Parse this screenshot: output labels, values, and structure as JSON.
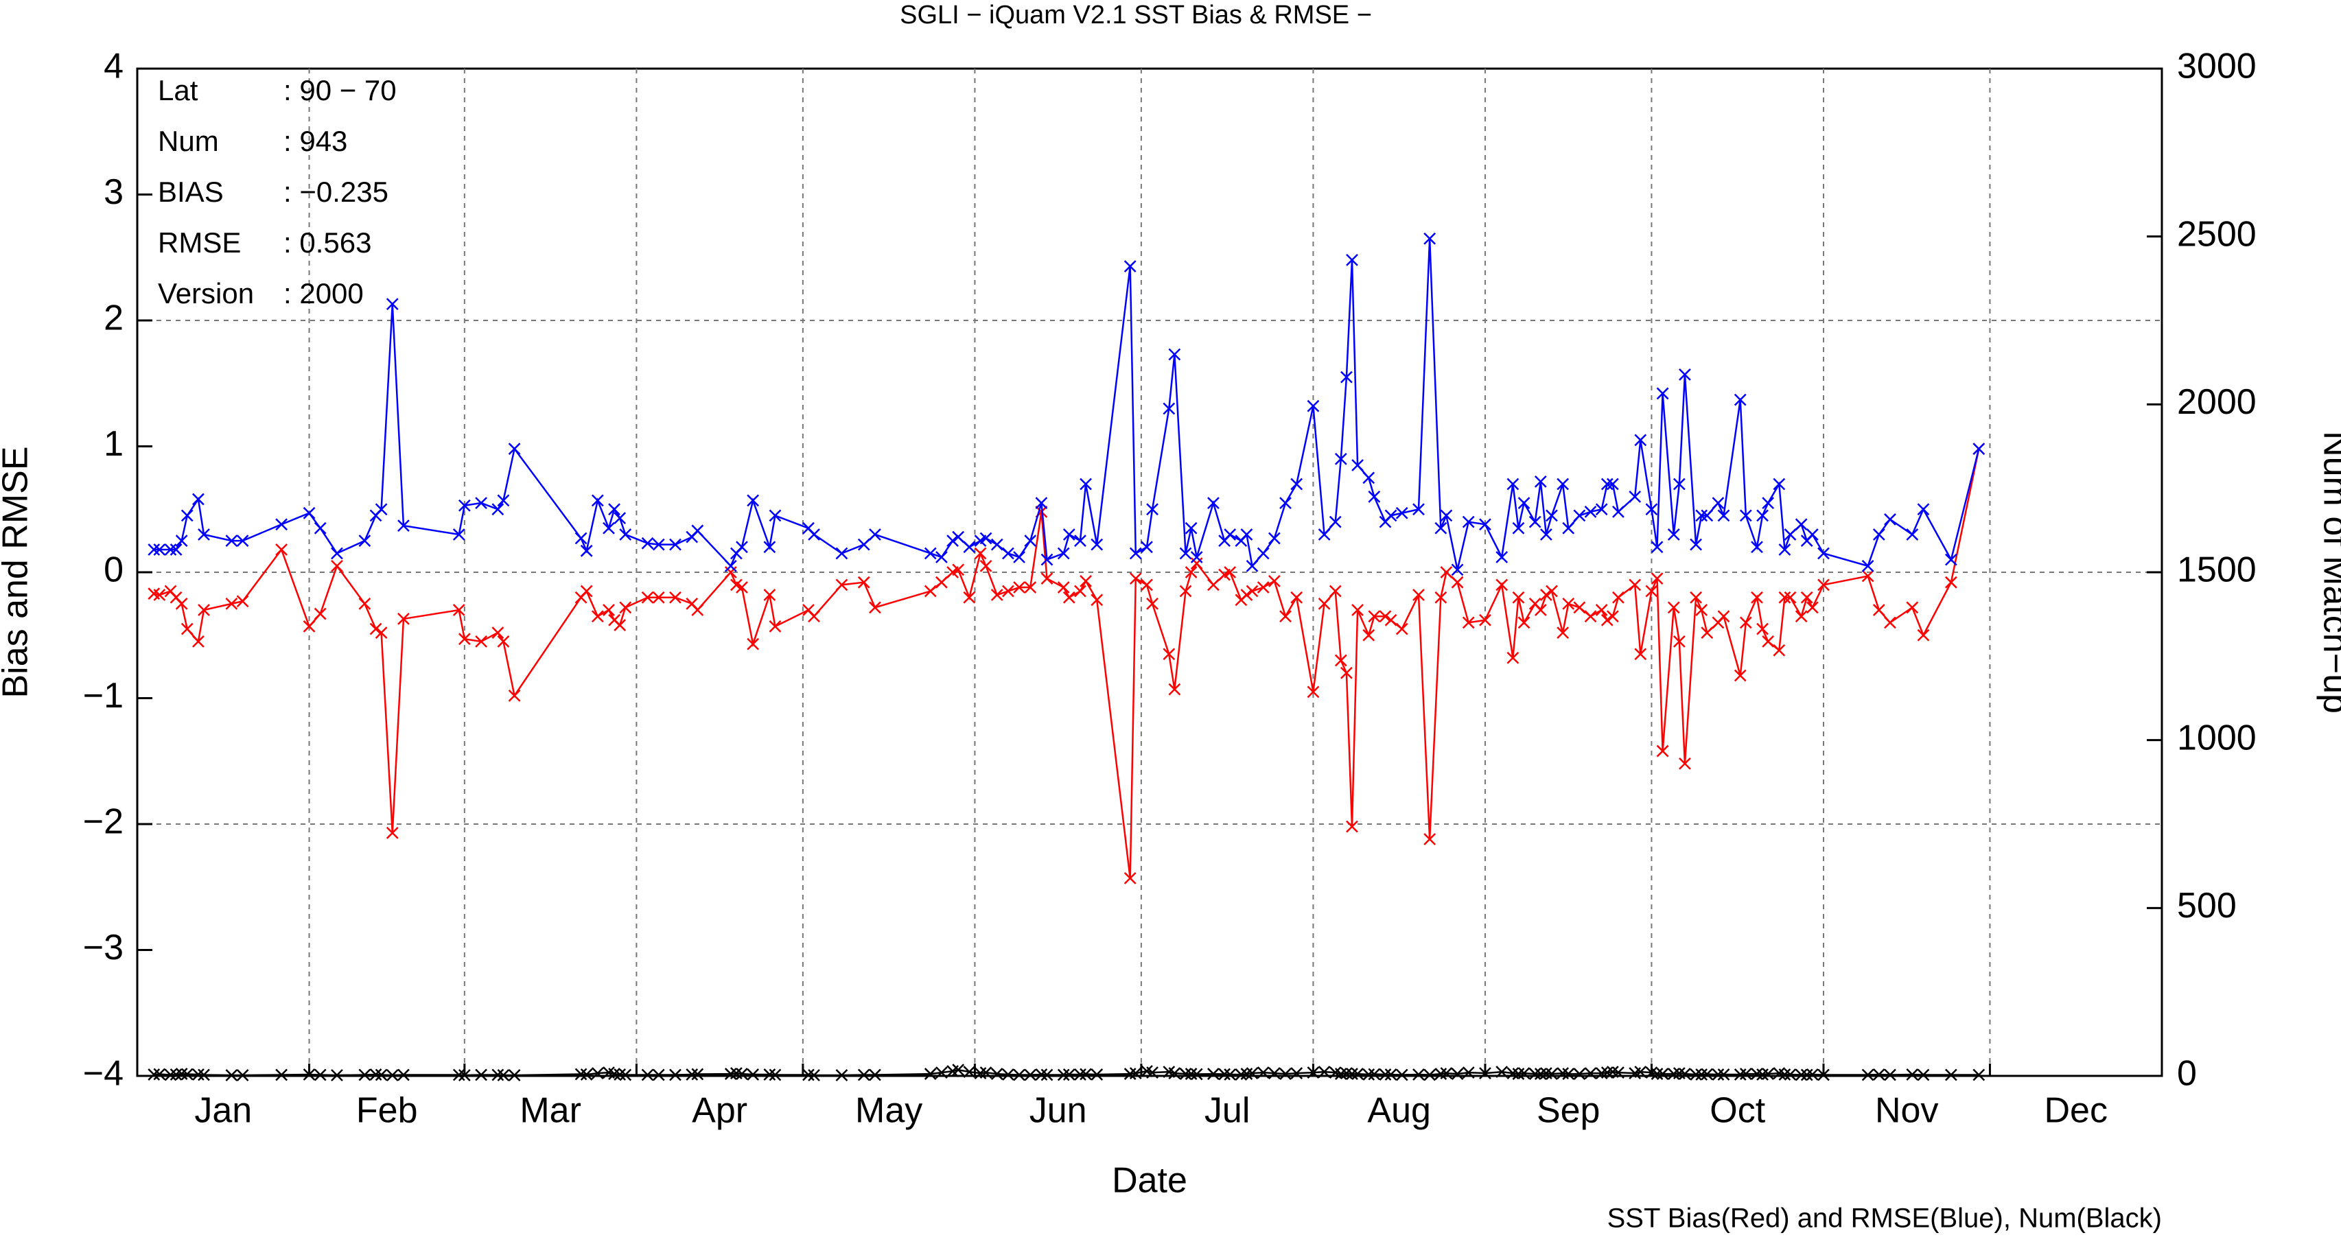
{
  "chart_data": {
    "type": "line",
    "title": "SGLI − iQuam V2.1 SST Bias & RMSE  −",
    "xlabel": "Date",
    "ylabel": "Bias and RMSE",
    "y2label": "Num of Match−up",
    "footer": "SST Bias(Red) and RMSE(Blue), Num(Black)",
    "stats": [
      [
        "Lat",
        ": 90 − 70"
      ],
      [
        "Num",
        ": 943"
      ],
      [
        "BIAS",
        ": −0.235"
      ],
      [
        "RMSE",
        ": 0.563"
      ],
      [
        "Version",
        ": 2000"
      ]
    ],
    "xlim": [
      0,
      365
    ],
    "xticks": [
      {
        "value": 15.5,
        "label": "Jan"
      },
      {
        "value": 45,
        "label": "Feb"
      },
      {
        "value": 74.5,
        "label": "Mar"
      },
      {
        "value": 105,
        "label": "Apr"
      },
      {
        "value": 135.5,
        "label": "May"
      },
      {
        "value": 166,
        "label": "Jun"
      },
      {
        "value": 196.5,
        "label": "Jul"
      },
      {
        "value": 227.5,
        "label": "Aug"
      },
      {
        "value": 258,
        "label": "Sep"
      },
      {
        "value": 288.5,
        "label": "Oct"
      },
      {
        "value": 319,
        "label": "Nov"
      },
      {
        "value": 349.5,
        "label": "Dec"
      }
    ],
    "xgrid": [
      31,
      59,
      90,
      120,
      151,
      181,
      212,
      243,
      273,
      304,
      334
    ],
    "ylim": [
      -4,
      4
    ],
    "yticks": [
      {
        "value": -4,
        "label": "−4"
      },
      {
        "value": -3,
        "label": "−3"
      },
      {
        "value": -2,
        "label": "−2"
      },
      {
        "value": -1,
        "label": "−1"
      },
      0,
      1,
      2,
      3,
      4
    ],
    "ygrid": [
      -2,
      0,
      2
    ],
    "y2lim": [
      0,
      3000
    ],
    "y2ticks": [
      0,
      500,
      1000,
      1500,
      2000,
      2500,
      3000
    ],
    "grid": true,
    "x": [
      3,
      4,
      6,
      7,
      8,
      9,
      11,
      12,
      17,
      19,
      26,
      31,
      33,
      36,
      41,
      43,
      44,
      46,
      48,
      58,
      59,
      62,
      65,
      66,
      68,
      80,
      81,
      83,
      85,
      86,
      87,
      88,
      92,
      94,
      97,
      100,
      101,
      107,
      108,
      109,
      111,
      114,
      115,
      121,
      122,
      127,
      131,
      133,
      143,
      145,
      147,
      148,
      150,
      152,
      153,
      155,
      157,
      159,
      161,
      163,
      164,
      167,
      168,
      170,
      171,
      173,
      179,
      180,
      182,
      183,
      186,
      187,
      189,
      190,
      191,
      194,
      196,
      197,
      199,
      200,
      201,
      203,
      205,
      207,
      209,
      212,
      214,
      216,
      217,
      218,
      219,
      220,
      222,
      223,
      225,
      226,
      228,
      231,
      233,
      235,
      236,
      238,
      240,
      243,
      246,
      248,
      249,
      250,
      252,
      253,
      254,
      255,
      257,
      258,
      260,
      262,
      264,
      265,
      266,
      267,
      270,
      271,
      273,
      274,
      275,
      277,
      278,
      279,
      281,
      282,
      283,
      285,
      286,
      289,
      290,
      292,
      293,
      294,
      296,
      297,
      298,
      300,
      301,
      302,
      304,
      312,
      314,
      316,
      320,
      322,
      327,
      332
    ],
    "series": [
      {
        "color": "#ff0000",
        "values": [
          -0.17,
          -0.18,
          -0.15,
          -0.2,
          -0.25,
          -0.45,
          -0.55,
          -0.3,
          -0.25,
          -0.23,
          0.18,
          -0.43,
          -0.33,
          0.05,
          -0.25,
          -0.45,
          -0.48,
          -2.07,
          -0.37,
          -0.3,
          -0.53,
          -0.55,
          -0.48,
          -0.55,
          -0.98,
          -0.2,
          -0.15,
          -0.35,
          -0.3,
          -0.38,
          -0.42,
          -0.28,
          -0.2,
          -0.2,
          -0.2,
          -0.25,
          -0.3,
          0,
          -0.1,
          -0.12,
          -0.57,
          -0.18,
          -0.43,
          -0.3,
          -0.35,
          -0.1,
          -0.08,
          -0.28,
          -0.15,
          -0.08,
          0,
          0.02,
          -0.2,
          0.15,
          0.05,
          -0.18,
          -0.15,
          -0.12,
          -0.12,
          0.48,
          -0.05,
          -0.12,
          -0.2,
          -0.15,
          -0.07,
          -0.22,
          -2.43,
          -0.05,
          -0.1,
          -0.25,
          -0.65,
          -0.93,
          -0.15,
          0,
          0.07,
          -0.1,
          -0.02,
          0,
          -0.22,
          -0.18,
          -0.15,
          -0.12,
          -0.07,
          -0.35,
          -0.2,
          -0.95,
          -0.25,
          -0.15,
          -0.7,
          -0.8,
          -2.02,
          -0.3,
          -0.5,
          -0.35,
          -0.35,
          -0.38,
          -0.45,
          -0.18,
          -2.12,
          -0.2,
          0,
          -0.08,
          -0.4,
          -0.38,
          -0.1,
          -0.68,
          -0.2,
          -0.4,
          -0.25,
          -0.3,
          -0.18,
          -0.15,
          -0.48,
          -0.25,
          -0.28,
          -0.35,
          -0.3,
          -0.38,
          -0.35,
          -0.2,
          -0.1,
          -0.65,
          -0.15,
          -0.05,
          -1.42,
          -0.28,
          -0.55,
          -1.52,
          -0.2,
          -0.3,
          -0.48,
          -0.4,
          -0.35,
          -0.82,
          -0.4,
          -0.2,
          -0.45,
          -0.55,
          -0.62,
          -0.2,
          -0.2,
          -0.35,
          -0.2,
          -0.28,
          -0.1,
          -0.03,
          -0.3,
          -0.4,
          -0.28,
          -0.5,
          -0.08,
          0.98
        ]
      },
      {
        "color": "#0000ff",
        "values": [
          0.18,
          0.18,
          0.18,
          0.18,
          0.25,
          0.45,
          0.58,
          0.3,
          0.25,
          0.25,
          0.38,
          0.47,
          0.35,
          0.15,
          0.25,
          0.45,
          0.5,
          2.13,
          0.37,
          0.3,
          0.53,
          0.55,
          0.5,
          0.57,
          0.98,
          0.27,
          0.17,
          0.57,
          0.35,
          0.5,
          0.43,
          0.3,
          0.23,
          0.22,
          0.22,
          0.28,
          0.33,
          0.05,
          0.15,
          0.2,
          0.57,
          0.2,
          0.45,
          0.35,
          0.3,
          0.15,
          0.22,
          0.3,
          0.15,
          0.12,
          0.25,
          0.28,
          0.2,
          0.25,
          0.27,
          0.22,
          0.15,
          0.12,
          0.25,
          0.55,
          0.1,
          0.15,
          0.3,
          0.25,
          0.7,
          0.22,
          2.43,
          0.15,
          0.2,
          0.5,
          1.3,
          1.73,
          0.15,
          0.35,
          0.12,
          0.55,
          0.25,
          0.3,
          0.25,
          0.3,
          0.05,
          0.15,
          0.27,
          0.55,
          0.7,
          1.32,
          0.3,
          0.4,
          0.9,
          1.55,
          2.48,
          0.85,
          0.75,
          0.6,
          0.4,
          0.45,
          0.47,
          0.5,
          2.65,
          0.35,
          0.45,
          0.02,
          0.4,
          0.38,
          0.12,
          0.7,
          0.35,
          0.55,
          0.4,
          0.72,
          0.3,
          0.45,
          0.7,
          0.35,
          0.45,
          0.48,
          0.5,
          0.7,
          0.7,
          0.48,
          0.6,
          1.05,
          0.5,
          0.2,
          1.42,
          0.3,
          0.7,
          1.57,
          0.22,
          0.45,
          0.45,
          0.55,
          0.45,
          1.37,
          0.45,
          0.2,
          0.45,
          0.55,
          0.7,
          0.18,
          0.3,
          0.38,
          0.25,
          0.3,
          0.15,
          0.05,
          0.3,
          0.42,
          0.3,
          0.5,
          0.1,
          0.98
        ]
      },
      {
        "color": "#000000",
        "axis": "y2",
        "values": [
          4,
          5,
          3,
          4,
          6,
          5,
          4,
          3,
          2,
          2,
          3,
          4,
          3,
          2,
          3,
          4,
          3,
          2,
          3,
          3,
          2,
          3,
          3,
          2,
          2,
          5,
          4,
          8,
          10,
          6,
          4,
          3,
          3,
          3,
          3,
          4,
          5,
          6,
          8,
          6,
          4,
          4,
          3,
          3,
          2,
          2,
          3,
          3,
          6,
          10,
          14,
          18,
          12,
          8,
          10,
          6,
          4,
          3,
          3,
          4,
          3,
          3,
          4,
          4,
          5,
          4,
          6,
          8,
          14,
          10,
          12,
          8,
          6,
          6,
          5,
          6,
          5,
          4,
          4,
          6,
          8,
          10,
          8,
          6,
          8,
          10,
          12,
          10,
          6,
          8,
          6,
          6,
          4,
          5,
          4,
          4,
          3,
          4,
          3,
          6,
          8,
          6,
          10,
          8,
          12,
          8,
          6,
          8,
          6,
          6,
          8,
          6,
          8,
          6,
          6,
          8,
          8,
          10,
          12,
          10,
          8,
          12,
          10,
          6,
          6,
          6,
          8,
          6,
          4,
          4,
          5,
          4,
          4,
          4,
          6,
          6,
          4,
          6,
          8,
          4,
          4,
          3,
          3,
          4,
          3,
          3,
          4,
          3,
          4,
          3,
          3,
          3
        ]
      }
    ]
  }
}
